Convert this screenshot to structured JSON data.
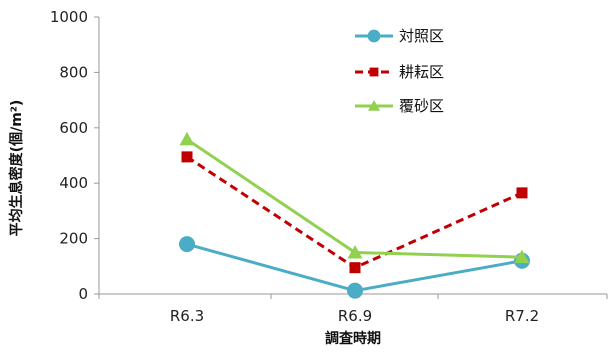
{
  "chart_data": {
    "type": "line",
    "title": "",
    "xlabel": "調査時期",
    "ylabel": "平均生息密度(個/m²)",
    "categories": [
      "R6.3",
      "R6.9",
      "R7.2"
    ],
    "ylim": [
      0,
      1000
    ],
    "yticks": [
      0,
      200,
      400,
      600,
      800,
      1000
    ],
    "grid": false,
    "legend_position": "top-right",
    "series": [
      {
        "name": "対照区",
        "values": [
          180,
          12,
          120
        ],
        "color": "#4BACC6",
        "marker": "circle",
        "line": "solid"
      },
      {
        "name": "耕耘区",
        "values": [
          495,
          95,
          365
        ],
        "color": "#C00000",
        "marker": "square",
        "line": "dashed"
      },
      {
        "name": "覆砂区",
        "values": [
          558,
          150,
          133
        ],
        "color": "#92D050",
        "marker": "triangle",
        "line": "solid"
      }
    ]
  }
}
